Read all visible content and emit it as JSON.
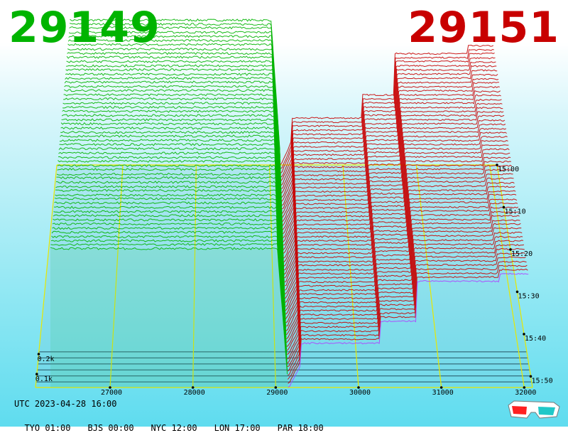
{
  "prices": {
    "bid": "29149",
    "ask": "29151"
  },
  "timestamp": "UTC 2023-04-28 16:00",
  "timezones": [
    {
      "city": "TYO",
      "time": "01:00"
    },
    {
      "city": "BJS",
      "time": "00:00"
    },
    {
      "city": "NYC",
      "time": "12:00"
    },
    {
      "city": "LON",
      "time": "17:00"
    },
    {
      "city": "PAR",
      "time": "18:00"
    }
  ],
  "colors": {
    "bid": "#00b400",
    "ask": "#c80000",
    "grid": "#e8e800",
    "latest_ask": "#b040ff"
  },
  "icons": {
    "anaglyph": "3d-glasses-icon"
  },
  "chart_data": {
    "type": "area",
    "x_ticks": [
      "27000",
      "28000",
      "29000",
      "30000",
      "31000",
      "32000"
    ],
    "time_ticks": [
      "15:00",
      "15:10",
      "15:20",
      "15:30",
      "15:40",
      "15:50"
    ],
    "depth_ticks": [
      "0.1k",
      "0.2k"
    ],
    "xlim": [
      26100,
      32100
    ],
    "mid_price": 29150
  }
}
